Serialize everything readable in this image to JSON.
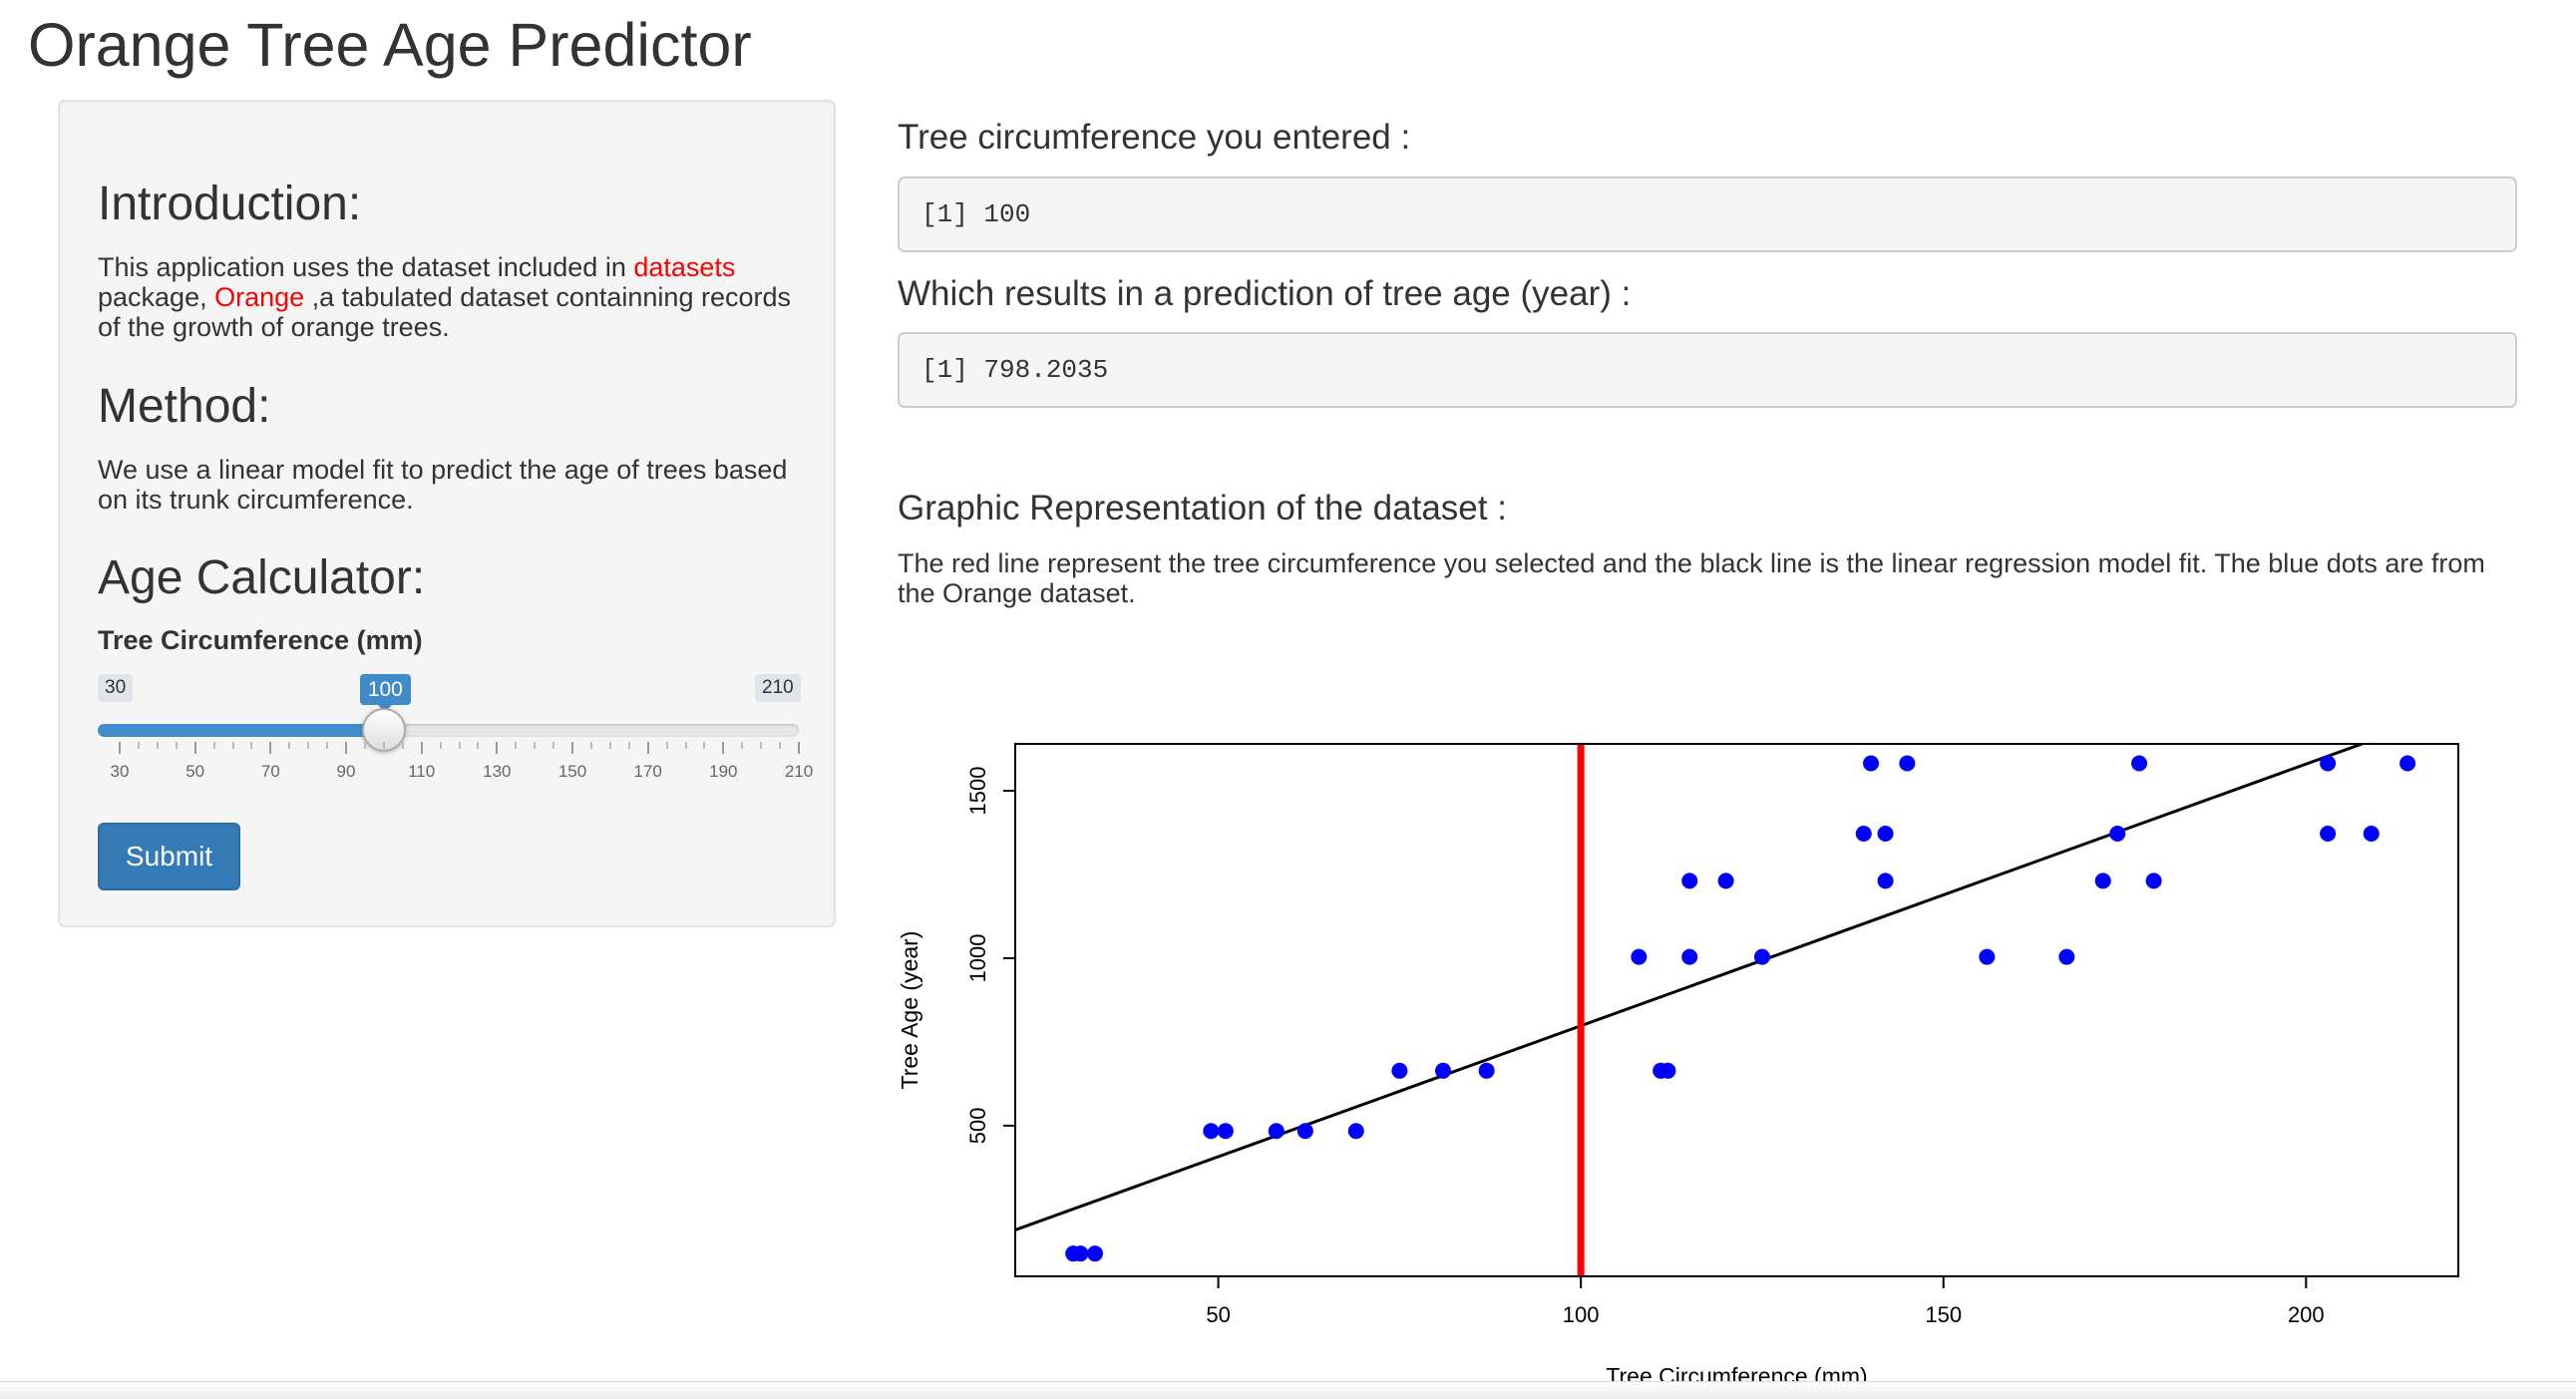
{
  "app": {
    "title": "Orange Tree Age Predictor"
  },
  "sidebar": {
    "intro_heading": "Introduction:",
    "intro_text": {
      "part1": "This application uses the dataset included in ",
      "link1": "datasets",
      "part2": " package, ",
      "link2": "Orange",
      "part3": " ,a tabulated dataset containning records of the growth of orange trees."
    },
    "method_heading": "Method:",
    "method_text": "We use a linear model fit to predict the age of trees based on its trunk circumference.",
    "calc_heading": "Age Calculator:",
    "slider": {
      "label": "Tree Circumference (mm)",
      "min_label": "30",
      "max_label": "210",
      "value_label": "100",
      "min": 30,
      "max": 210,
      "value": 100,
      "tick_labels": [
        "30",
        "50",
        "70",
        "90",
        "110",
        "130",
        "150",
        "170",
        "190",
        "210"
      ]
    },
    "submit_label": "Submit",
    "accent_color": "#428bca"
  },
  "main": {
    "entered_heading": "Tree circumference you entered :",
    "entered_output": "[1] 100",
    "prediction_heading": "Which results in a prediction of tree age (year) :",
    "prediction_output": "[1] 798.2035",
    "graphic_heading": "Graphic Representation of the dataset :",
    "graphic_text": "The red line represent the tree circumference you selected and the black line is the linear regression model fit. The blue dots are from the Orange dataset."
  },
  "chart_data": {
    "type": "scatter",
    "xlabel": "Tree Circumference (mm)",
    "ylabel": "Tree Age (year)",
    "xlim": [
      22,
      221
    ],
    "ylim": [
      50,
      1640
    ],
    "xticks": [
      "50",
      "100",
      "150",
      "200"
    ],
    "yticks": [
      "500",
      "1000",
      "1500"
    ],
    "point_color": "#0000ff",
    "points": [
      [
        30,
        118
      ],
      [
        31,
        118
      ],
      [
        33,
        118
      ],
      [
        49,
        484
      ],
      [
        51,
        484
      ],
      [
        58,
        484
      ],
      [
        62,
        484
      ],
      [
        69,
        484
      ],
      [
        75,
        664
      ],
      [
        81,
        664
      ],
      [
        87,
        664
      ],
      [
        108,
        1004
      ],
      [
        111,
        664
      ],
      [
        112,
        664
      ],
      [
        115,
        1004
      ],
      [
        125,
        1004
      ],
      [
        115,
        1231
      ],
      [
        120,
        1231
      ],
      [
        139,
        1372
      ],
      [
        142,
        1372
      ],
      [
        142,
        1231
      ],
      [
        140,
        1582
      ],
      [
        145,
        1582
      ],
      [
        156,
        1004
      ],
      [
        167,
        1004
      ],
      [
        172,
        1231
      ],
      [
        174,
        1372
      ],
      [
        177,
        1582
      ],
      [
        179,
        1231
      ],
      [
        203,
        1582
      ],
      [
        203,
        1372
      ],
      [
        209,
        1372
      ],
      [
        214,
        1582
      ]
    ],
    "regression": {
      "intercept": 16.6,
      "slope": 7.816,
      "color": "#000000"
    },
    "selected_x": 100,
    "selected_color": "#ff0000"
  }
}
